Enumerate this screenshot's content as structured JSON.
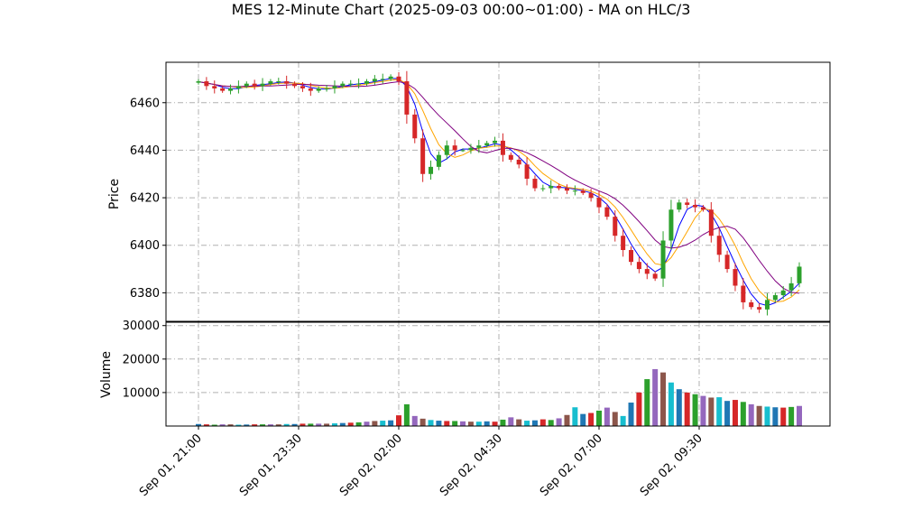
{
  "chart_data": {
    "type": "candlestick",
    "title": "MES 12-Minute Chart (2025-09-03 00:00~01:00) - MA on HLC/3",
    "price_panel": {
      "ylabel": "Price",
      "ylim": [
        6368,
        6477
      ],
      "yticks": [
        6380,
        6400,
        6420,
        6440,
        6460
      ]
    },
    "volume_panel": {
      "ylabel": "Volume",
      "ylim": [
        0,
        31000
      ],
      "yticks": [
        10000,
        20000,
        30000
      ],
      "ytick_labels": [
        "10000",
        "20000",
        "30000"
      ]
    },
    "xtick_labels": [
      "Sep 01, 21:00",
      "Sep 01, 23:30",
      "Sep 02, 02:00",
      "Sep 02, 04:30",
      "Sep 02, 07:00",
      "Sep 02, 09:30"
    ],
    "xtick_bar_index": [
      0,
      12.5,
      25,
      37.5,
      50,
      62.5
    ],
    "bar_count": 76,
    "grid": true,
    "colors": {
      "up": "#2ca02c",
      "down": "#d62728",
      "ma_fast": "#0000ff",
      "ma_mid": "#ffa500",
      "ma_slow": "#800080",
      "grid": "#b0b0b0",
      "volume_palette": [
        "#1f77b4",
        "#d62728",
        "#2ca02c",
        "#9467bd",
        "#8c564b",
        "#17becf"
      ]
    },
    "close_path": [
      6469,
      6467,
      6466,
      6465,
      6466,
      6467,
      6468,
      6467,
      6468,
      6469,
      6469,
      6468,
      6467,
      6466,
      6465,
      6466,
      6466,
      6467,
      6468,
      6468,
      6468,
      6469,
      6470,
      6470,
      6471,
      6469,
      6455,
      6445,
      6430,
      6433,
      6438,
      6442,
      6440,
      6440,
      6441,
      6442,
      6443,
      6444,
      6438,
      6436,
      6434,
      6428,
      6424,
      6424,
      6425,
      6424,
      6423,
      6423,
      6422,
      6420,
      6416,
      6412,
      6404,
      6398,
      6393,
      6390,
      6388,
      6386,
      6402,
      6415,
      6418,
      6417,
      6416,
      6415,
      6404,
      6396,
      6390,
      6383,
      6376,
      6374,
      6373,
      6377,
      6379,
      6381,
      6384,
      6391
    ],
    "volume": [
      600,
      500,
      400,
      500,
      500,
      400,
      450,
      500,
      500,
      500,
      500,
      600,
      600,
      700,
      700,
      700,
      700,
      800,
      900,
      1000,
      1100,
      1300,
      1500,
      1600,
      1700,
      3200,
      6500,
      3000,
      2200,
      1800,
      1600,
      1500,
      1500,
      1400,
      1300,
      1300,
      1400,
      1300,
      1900,
      2600,
      2000,
      1600,
      1700,
      2000,
      1800,
      2300,
      3300,
      5600,
      3600,
      3900,
      4600,
      5500,
      4200,
      3000,
      7000,
      10000,
      14000,
      17000,
      16000,
      13000,
      11000,
      10000,
      9500,
      9000,
      8500,
      8600,
      7500,
      7800,
      7200,
      6500,
      6000,
      5800,
      5600,
      5500,
      5700,
      6000
    ]
  }
}
